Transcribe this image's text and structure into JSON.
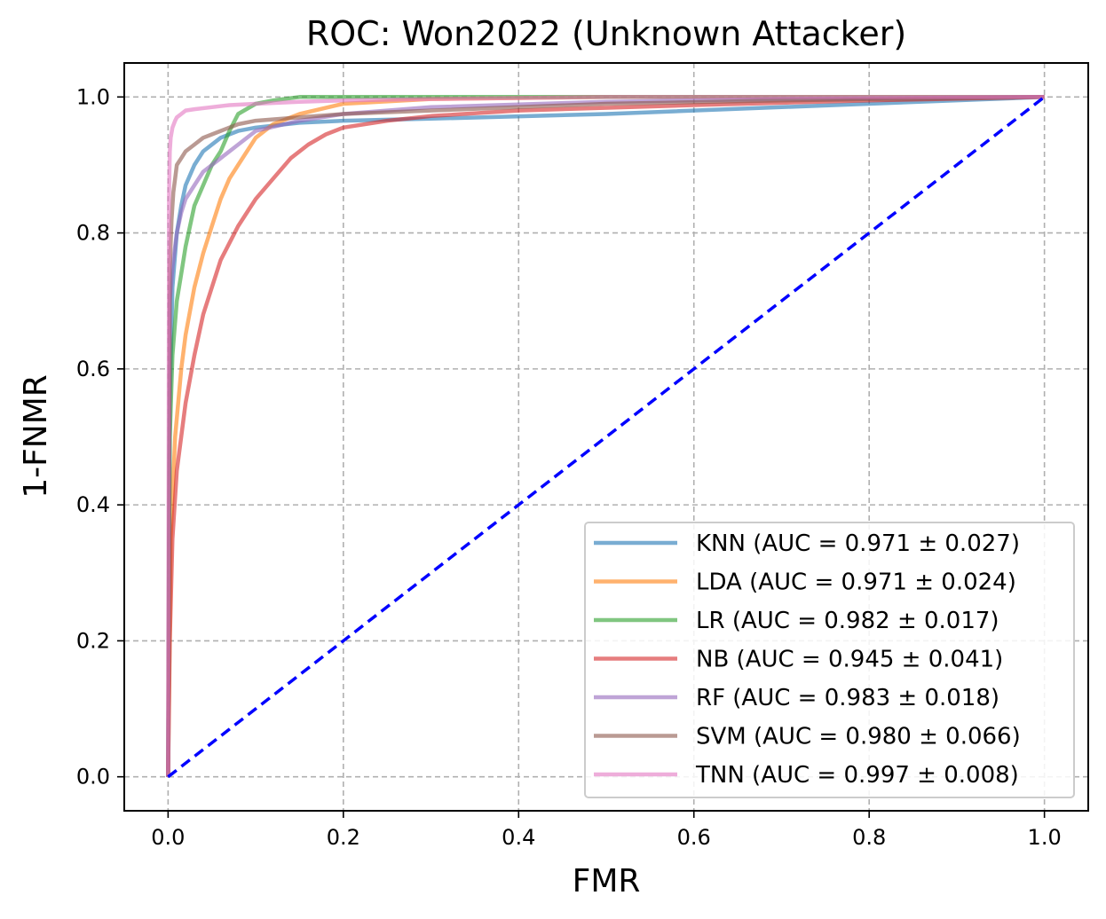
{
  "chart_data": {
    "type": "line",
    "title": "ROC: Won2022 (Unknown Attacker)",
    "xlabel": "FMR",
    "ylabel": "1-FNMR",
    "xlim": [
      -0.05,
      1.05
    ],
    "ylim": [
      -0.05,
      1.05
    ],
    "xticks": [
      "0.0",
      "0.2",
      "0.4",
      "0.6",
      "0.8",
      "1.0"
    ],
    "yticks": [
      "0.0",
      "0.2",
      "0.4",
      "0.6",
      "0.8",
      "1.0"
    ],
    "grid": true,
    "legend_position": "lower-right",
    "series": [
      {
        "name": "KNN (AUC = 0.971 ± 0.027)",
        "color": "#1f77b4",
        "x": [
          0,
          0.002,
          0.005,
          0.01,
          0.015,
          0.02,
          0.03,
          0.04,
          0.06,
          0.08,
          0.1,
          0.15,
          0.2,
          0.3,
          0.5,
          0.7,
          1.0
        ],
        "y": [
          0,
          0.55,
          0.72,
          0.8,
          0.84,
          0.87,
          0.9,
          0.92,
          0.94,
          0.95,
          0.955,
          0.962,
          0.965,
          0.968,
          0.975,
          0.985,
          1.0
        ]
      },
      {
        "name": "LDA (AUC = 0.971 ± 0.024)",
        "color": "#ff7f0e",
        "x": [
          0,
          0.003,
          0.008,
          0.015,
          0.02,
          0.03,
          0.04,
          0.05,
          0.06,
          0.07,
          0.08,
          0.1,
          0.12,
          0.15,
          0.2,
          0.3,
          0.5,
          1.0
        ],
        "y": [
          0,
          0.35,
          0.5,
          0.6,
          0.65,
          0.72,
          0.77,
          0.81,
          0.85,
          0.88,
          0.9,
          0.94,
          0.96,
          0.975,
          0.99,
          0.997,
          1.0,
          1.0
        ]
      },
      {
        "name": "LR (AUC = 0.982 ± 0.017)",
        "color": "#2ca02c",
        "x": [
          0,
          0.002,
          0.005,
          0.01,
          0.015,
          0.02,
          0.03,
          0.04,
          0.05,
          0.06,
          0.07,
          0.08,
          0.1,
          0.12,
          0.15,
          0.2,
          0.3,
          1.0
        ],
        "y": [
          0,
          0.5,
          0.62,
          0.7,
          0.74,
          0.78,
          0.84,
          0.87,
          0.9,
          0.92,
          0.95,
          0.975,
          0.99,
          0.995,
          1.0,
          1.0,
          1.0,
          1.0
        ]
      },
      {
        "name": "NB (AUC = 0.945 ± 0.041)",
        "color": "#d62728",
        "x": [
          0,
          0.002,
          0.005,
          0.01,
          0.02,
          0.03,
          0.04,
          0.05,
          0.06,
          0.08,
          0.1,
          0.12,
          0.14,
          0.16,
          0.18,
          0.2,
          0.25,
          0.3,
          0.4,
          0.6,
          0.8,
          1.0
        ],
        "y": [
          0,
          0.2,
          0.35,
          0.45,
          0.55,
          0.62,
          0.68,
          0.72,
          0.76,
          0.81,
          0.85,
          0.88,
          0.91,
          0.93,
          0.945,
          0.955,
          0.965,
          0.972,
          0.98,
          0.988,
          0.995,
          1.0
        ]
      },
      {
        "name": "RF (AUC = 0.983 ± 0.018)",
        "color": "#9467bd",
        "x": [
          0,
          0.002,
          0.005,
          0.01,
          0.015,
          0.02,
          0.03,
          0.04,
          0.05,
          0.06,
          0.08,
          0.1,
          0.15,
          0.2,
          0.3,
          0.5,
          0.7,
          1.0
        ],
        "y": [
          0,
          0.7,
          0.75,
          0.8,
          0.83,
          0.85,
          0.87,
          0.89,
          0.9,
          0.91,
          0.93,
          0.95,
          0.965,
          0.975,
          0.985,
          0.993,
          0.997,
          1.0
        ]
      },
      {
        "name": "SVM (AUC = 0.980 ± 0.066)",
        "color": "#8c564b",
        "x": [
          0,
          0.002,
          0.004,
          0.006,
          0.008,
          0.01,
          0.015,
          0.02,
          0.03,
          0.04,
          0.05,
          0.06,
          0.08,
          0.1,
          0.15,
          0.2,
          0.3,
          0.5,
          0.7,
          1.0
        ],
        "y": [
          0,
          0.75,
          0.82,
          0.86,
          0.88,
          0.9,
          0.91,
          0.92,
          0.93,
          0.94,
          0.945,
          0.95,
          0.96,
          0.965,
          0.97,
          0.975,
          0.98,
          0.99,
          0.995,
          1.0
        ]
      },
      {
        "name": "TNN (AUC = 0.997 ± 0.008)",
        "color": "#e377c2",
        "x": [
          0,
          0.001,
          0.002,
          0.003,
          0.005,
          0.008,
          0.01,
          0.015,
          0.02,
          0.03,
          0.05,
          0.07,
          0.1,
          0.15,
          0.2,
          0.3,
          0.5,
          1.0
        ],
        "y": [
          0,
          0.85,
          0.92,
          0.94,
          0.955,
          0.965,
          0.97,
          0.975,
          0.98,
          0.982,
          0.985,
          0.988,
          0.99,
          0.993,
          0.995,
          0.997,
          1.0,
          1.0
        ]
      }
    ],
    "reference_line": {
      "x": [
        0,
        1
      ],
      "y": [
        0,
        1
      ],
      "color": "#0000ff",
      "style": "dashed"
    }
  }
}
